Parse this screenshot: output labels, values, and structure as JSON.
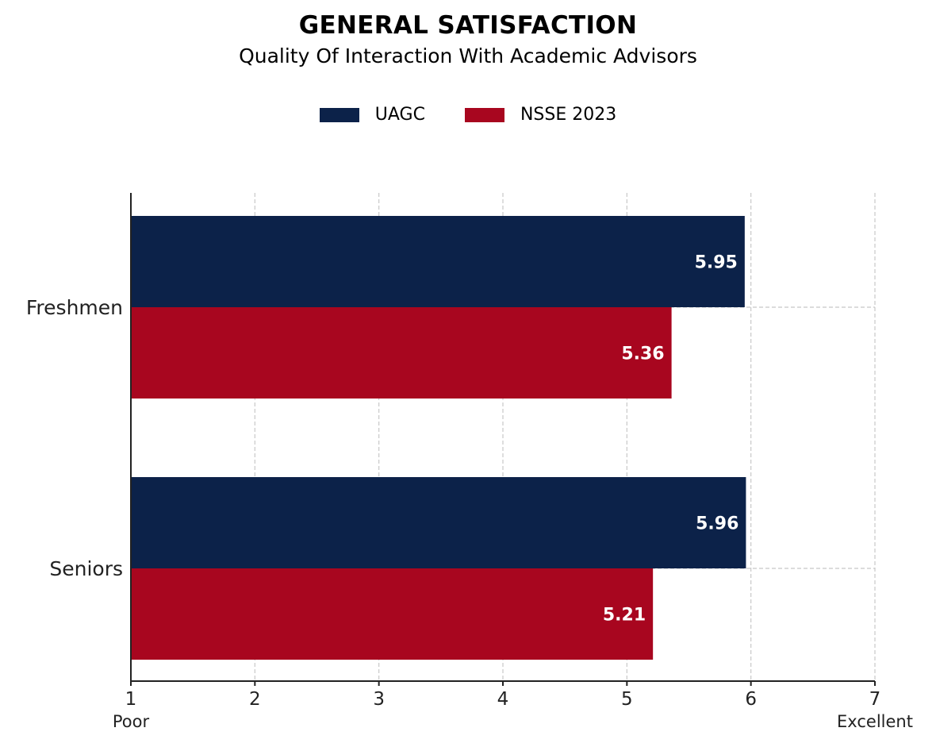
{
  "chart_data": {
    "type": "bar",
    "orientation": "horizontal",
    "title": "GENERAL SATISFACTION",
    "subtitle": "Quality Of Interaction With Academic Advisors",
    "categories": [
      "Freshmen",
      "Seniors"
    ],
    "series": [
      {
        "name": "UAGC",
        "values": [
          5.95,
          5.96
        ],
        "color": "#0c2249"
      },
      {
        "name": "NSSE 2023",
        "values": [
          5.36,
          5.21
        ],
        "color": "#a8061f"
      }
    ],
    "xlim": [
      1,
      7
    ],
    "xticks": [
      1,
      2,
      3,
      4,
      5,
      6,
      7
    ],
    "xtick_labels": [
      "1",
      "2",
      "3",
      "4",
      "5",
      "6",
      "7"
    ],
    "x_end_labels": {
      "min": "Poor",
      "max": "Excellent"
    },
    "grid": true,
    "legend_position": "top-center",
    "data_labels": [
      "5.95",
      "5.36",
      "5.96",
      "5.21"
    ]
  }
}
